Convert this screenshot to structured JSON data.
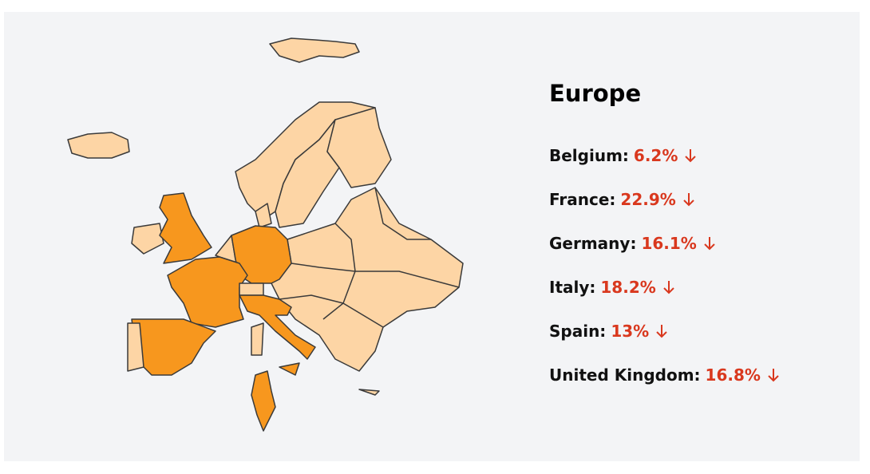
{
  "title": "Europe",
  "items": [
    {
      "country": "Belgium:",
      "value": "6.2%"
    },
    {
      "country": "France:",
      "value": "22.9%"
    },
    {
      "country": "Germany:",
      "value": "16.1%"
    },
    {
      "country": "Italy:",
      "value": "18.2%"
    },
    {
      "country": "Spain:",
      "value": "13%"
    },
    {
      "country": "United Kingdom:",
      "value": "16.8%"
    }
  ]
}
